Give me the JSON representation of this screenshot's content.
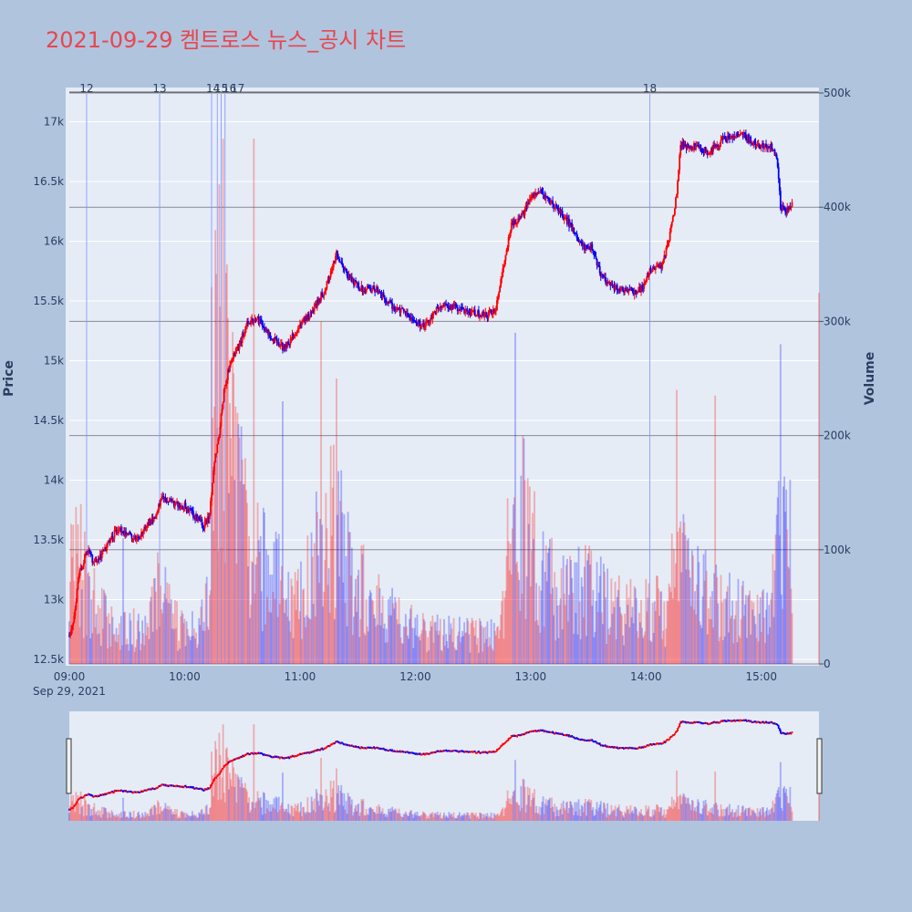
{
  "page": {
    "title": "2021-09-29 켐트로스 뉴스_공시 차트"
  },
  "colors": {
    "background": "#b0c4de",
    "plot_bg": "#e5ecf6",
    "title": "#e8464f",
    "up": "#ff0000",
    "down": "#0000ff",
    "news_line": "#8090ff"
  },
  "chart_data": {
    "type": "candlestick",
    "date_label": "Sep 29, 2021",
    "ylabel": "Price",
    "y2label": "Volume",
    "xlim": [
      "09:00",
      "15:30"
    ],
    "ylim": [
      12450,
      17300
    ],
    "y2lim": [
      0,
      500000
    ],
    "x_ticks": [
      "09:00",
      "10:00",
      "11:00",
      "12:00",
      "13:00",
      "14:00",
      "15:00"
    ],
    "y_ticks": [
      "12.5k",
      "13k",
      "13.5k",
      "14k",
      "14.5k",
      "15k",
      "15.5k",
      "16k",
      "16.5k",
      "17k"
    ],
    "y_tick_values": [
      12500,
      13000,
      13500,
      14000,
      14500,
      15000,
      15500,
      16000,
      16500,
      17000
    ],
    "y2_ticks": [
      "0",
      "100k",
      "200k",
      "300k",
      "400k",
      "500k"
    ],
    "y2_tick_values": [
      0,
      100000,
      200000,
      300000,
      400000,
      500000
    ],
    "news_markers": [
      {
        "label": "12",
        "time": "09:09"
      },
      {
        "label": "13",
        "time": "09:47"
      },
      {
        "label": "14",
        "time": "10:14"
      },
      {
        "label": "15",
        "time": "10:17"
      },
      {
        "label": "16",
        "time": "10:19"
      },
      {
        "label": "17",
        "time": "10:21"
      },
      {
        "label": "18",
        "time": "14:02"
      }
    ],
    "price_keypoints": [
      [
        "09:00",
        12700
      ],
      [
        "09:02",
        12800
      ],
      [
        "09:05",
        13200
      ],
      [
        "09:08",
        13350
      ],
      [
        "09:10",
        13400
      ],
      [
        "09:13",
        13300
      ],
      [
        "09:18",
        13400
      ],
      [
        "09:25",
        13600
      ],
      [
        "09:30",
        13550
      ],
      [
        "09:35",
        13500
      ],
      [
        "09:40",
        13600
      ],
      [
        "09:45",
        13700
      ],
      [
        "09:48",
        13850
      ],
      [
        "09:55",
        13800
      ],
      [
        "10:00",
        13780
      ],
      [
        "10:05",
        13700
      ],
      [
        "10:10",
        13620
      ],
      [
        "10:13",
        13700
      ],
      [
        "10:15",
        14100
      ],
      [
        "10:18",
        14400
      ],
      [
        "10:21",
        14800
      ],
      [
        "10:24",
        15000
      ],
      [
        "10:28",
        15100
      ],
      [
        "10:32",
        15300
      ],
      [
        "10:38",
        15350
      ],
      [
        "10:45",
        15200
      ],
      [
        "10:52",
        15100
      ],
      [
        "11:00",
        15300
      ],
      [
        "11:06",
        15400
      ],
      [
        "11:13",
        15600
      ],
      [
        "11:19",
        15900
      ],
      [
        "11:25",
        15700
      ],
      [
        "11:32",
        15600
      ],
      [
        "11:40",
        15600
      ],
      [
        "11:48",
        15450
      ],
      [
        "11:55",
        15400
      ],
      [
        "12:00",
        15320
      ],
      [
        "12:05",
        15300
      ],
      [
        "12:12",
        15450
      ],
      [
        "12:20",
        15450
      ],
      [
        "12:30",
        15400
      ],
      [
        "12:38",
        15380
      ],
      [
        "12:42",
        15450
      ],
      [
        "12:45",
        15700
      ],
      [
        "12:50",
        16150
      ],
      [
        "12:55",
        16200
      ],
      [
        "13:00",
        16350
      ],
      [
        "13:05",
        16400
      ],
      [
        "13:12",
        16300
      ],
      [
        "13:20",
        16150
      ],
      [
        "13:27",
        15950
      ],
      [
        "13:32",
        15950
      ],
      [
        "13:37",
        15700
      ],
      [
        "13:45",
        15600
      ],
      [
        "13:52",
        15570
      ],
      [
        "13:58",
        15600
      ],
      [
        "14:02",
        15750
      ],
      [
        "14:08",
        15800
      ],
      [
        "14:12",
        16000
      ],
      [
        "14:16",
        16400
      ],
      [
        "14:18",
        16800
      ],
      [
        "14:25",
        16800
      ],
      [
        "14:32",
        16750
      ],
      [
        "14:40",
        16850
      ],
      [
        "14:50",
        16900
      ],
      [
        "14:58",
        16800
      ],
      [
        "15:05",
        16800
      ],
      [
        "15:08",
        16700
      ],
      [
        "15:10",
        16300
      ],
      [
        "15:13",
        16250
      ],
      [
        "15:16",
        16300
      ]
    ],
    "volume_keypoints": [
      [
        "09:00",
        90000
      ],
      [
        "09:05",
        110000
      ],
      [
        "09:10",
        70000
      ],
      [
        "09:20",
        45000
      ],
      [
        "09:30",
        40000
      ],
      [
        "09:40",
        35000
      ],
      [
        "09:47",
        80000
      ],
      [
        "09:55",
        45000
      ],
      [
        "10:05",
        35000
      ],
      [
        "10:12",
        60000
      ],
      [
        "10:15",
        220000
      ],
      [
        "10:18",
        320000
      ],
      [
        "10:22",
        260000
      ],
      [
        "10:28",
        180000
      ],
      [
        "10:35",
        120000
      ],
      [
        "10:45",
        90000
      ],
      [
        "11:00",
        70000
      ],
      [
        "11:10",
        120000
      ],
      [
        "11:18",
        150000
      ],
      [
        "11:28",
        90000
      ],
      [
        "11:40",
        60000
      ],
      [
        "11:55",
        40000
      ],
      [
        "12:10",
        35000
      ],
      [
        "12:30",
        30000
      ],
      [
        "12:42",
        30000
      ],
      [
        "12:50",
        110000
      ],
      [
        "12:56",
        150000
      ],
      [
        "13:05",
        100000
      ],
      [
        "13:15",
        70000
      ],
      [
        "13:30",
        80000
      ],
      [
        "13:45",
        60000
      ],
      [
        "14:00",
        55000
      ],
      [
        "14:10",
        60000
      ],
      [
        "14:16",
        140000
      ],
      [
        "14:22",
        110000
      ],
      [
        "14:35",
        70000
      ],
      [
        "14:50",
        55000
      ],
      [
        "15:05",
        50000
      ],
      [
        "15:10",
        170000
      ],
      [
        "15:14",
        130000
      ]
    ],
    "volume_spikes": [
      [
        "09:06",
        140000
      ],
      [
        "09:28",
        110000
      ],
      [
        "10:14",
        330000
      ],
      [
        "10:16",
        380000
      ],
      [
        "10:18",
        420000
      ],
      [
        "10:20",
        460000
      ],
      [
        "10:22",
        350000
      ],
      [
        "10:28",
        210000
      ],
      [
        "10:36",
        460000
      ],
      [
        "10:51",
        230000
      ],
      [
        "11:11",
        300000
      ],
      [
        "11:19",
        250000
      ],
      [
        "12:48",
        145000
      ],
      [
        "12:52",
        290000
      ],
      [
        "12:56",
        200000
      ],
      [
        "14:16",
        240000
      ],
      [
        "14:36",
        235000
      ],
      [
        "15:10",
        280000
      ],
      [
        "15:30",
        325000
      ]
    ]
  }
}
